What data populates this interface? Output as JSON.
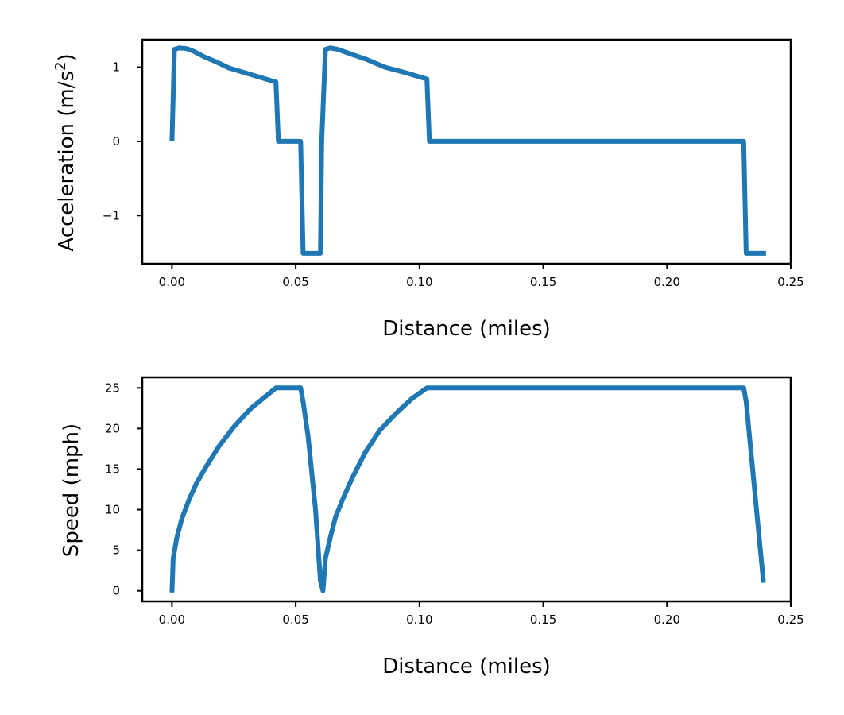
{
  "chart_data": [
    {
      "type": "line",
      "xlabel": "Distance (miles)",
      "ylabel_main": "Acceleration (m/s",
      "ylabel_sup": "2",
      "ylabel_tail": ")",
      "xlim": [
        -0.012,
        0.25
      ],
      "ylim": [
        -1.65,
        1.37
      ],
      "xticks": [
        0.0,
        0.05,
        0.1,
        0.15,
        0.2,
        0.25
      ],
      "xtick_labels": [
        "0.00",
        "0.05",
        "0.10",
        "0.15",
        "0.20",
        "0.25"
      ],
      "yticks": [
        1,
        0,
        -1
      ],
      "ytick_labels": [
        "1",
        "0",
        "−1"
      ],
      "color": "#1f77b4",
      "series": [
        {
          "points": [
            [
              0.0,
              0.0
            ],
            [
              0.001,
              1.24
            ],
            [
              0.003,
              1.26
            ],
            [
              0.006,
              1.25
            ],
            [
              0.009,
              1.21
            ],
            [
              0.013,
              1.14
            ],
            [
              0.018,
              1.07
            ],
            [
              0.023,
              0.99
            ],
            [
              0.03,
              0.92
            ],
            [
              0.036,
              0.86
            ],
            [
              0.042,
              0.8
            ],
            [
              0.043,
              0.0
            ],
            [
              0.052,
              0.0
            ],
            [
              0.053,
              -1.51
            ],
            [
              0.06,
              -1.51
            ],
            [
              0.0605,
              0.0
            ],
            [
              0.062,
              1.24
            ],
            [
              0.064,
              1.26
            ],
            [
              0.067,
              1.24
            ],
            [
              0.072,
              1.18
            ],
            [
              0.079,
              1.1
            ],
            [
              0.086,
              1.0
            ],
            [
              0.094,
              0.93
            ],
            [
              0.103,
              0.84
            ],
            [
              0.104,
              0.0
            ],
            [
              0.231,
              0.0
            ],
            [
              0.232,
              -1.51
            ],
            [
              0.24,
              -1.51
            ]
          ]
        }
      ]
    },
    {
      "type": "line",
      "xlabel": "Distance (miles)",
      "ylabel": "Speed (mph)",
      "xlim": [
        -0.012,
        0.25
      ],
      "ylim": [
        -1.3,
        26.3
      ],
      "xticks": [
        0.0,
        0.05,
        0.1,
        0.15,
        0.2,
        0.25
      ],
      "xtick_labels": [
        "0.00",
        "0.05",
        "0.10",
        "0.15",
        "0.20",
        "0.25"
      ],
      "yticks": [
        25,
        20,
        15,
        10,
        5,
        0
      ],
      "ytick_labels": [
        "25",
        "20",
        "15",
        "10",
        "5",
        "0"
      ],
      "color": "#1f77b4",
      "series": [
        {
          "points": [
            [
              0.0,
              -0.2
            ],
            [
              0.0005,
              4.0
            ],
            [
              0.002,
              6.6
            ],
            [
              0.004,
              8.9
            ],
            [
              0.007,
              11.3
            ],
            [
              0.01,
              13.3
            ],
            [
              0.014,
              15.4
            ],
            [
              0.019,
              17.8
            ],
            [
              0.025,
              20.2
            ],
            [
              0.032,
              22.5
            ],
            [
              0.038,
              24.0
            ],
            [
              0.042,
              25.0
            ],
            [
              0.052,
              25.0
            ],
            [
              0.053,
              23.3
            ],
            [
              0.055,
              19.0
            ],
            [
              0.058,
              10.0
            ],
            [
              0.06,
              1.2
            ],
            [
              0.061,
              0.0
            ],
            [
              0.062,
              4.0
            ],
            [
              0.064,
              6.6
            ],
            [
              0.066,
              9.0
            ],
            [
              0.069,
              11.3
            ],
            [
              0.073,
              14.0
            ],
            [
              0.078,
              17.0
            ],
            [
              0.084,
              19.8
            ],
            [
              0.091,
              22.0
            ],
            [
              0.097,
              23.7
            ],
            [
              0.103,
              25.0
            ],
            [
              0.231,
              25.0
            ],
            [
              0.232,
              23.3
            ],
            [
              0.239,
              1.0
            ]
          ]
        }
      ]
    }
  ]
}
